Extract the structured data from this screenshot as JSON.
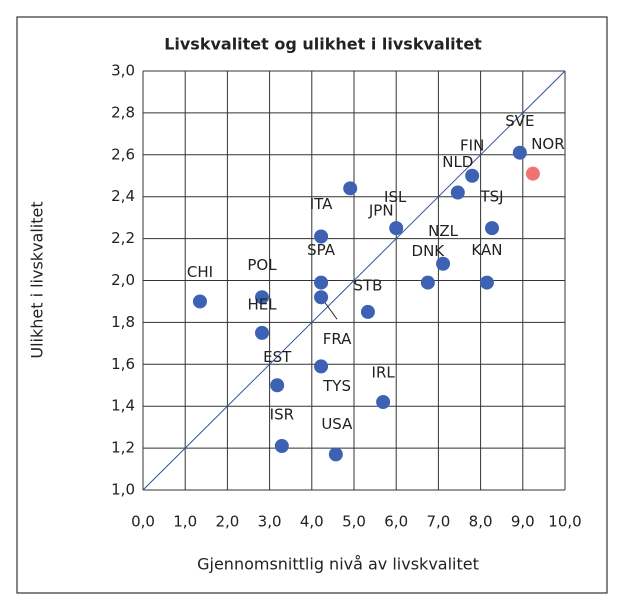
{
  "chart_data": {
    "type": "scatter",
    "title": "Livskvalitet og ulikhet i livskvalitet",
    "x_label": "Gjennomsnittlig nivå av livskvalitet",
    "y_label": "Ulikhet i livskvalitet",
    "labels": [
      "CHI",
      "POL",
      "HEL",
      "EST",
      "ISR",
      "ITA",
      "SPA",
      "FRA",
      "TYS",
      "ISL",
      "USA",
      "STB",
      "JPN",
      "IRL",
      "DNK",
      "NZL",
      "NLD",
      "FIN",
      "TSJ",
      "KAN",
      "SVE",
      "NOR"
    ],
    "x": [
      1.35,
      2.82,
      2.82,
      3.18,
      3.29,
      4.22,
      4.22,
      4.22,
      4.22,
      4.91,
      4.57,
      5.33,
      6.0,
      5.69,
      6.75,
      7.11,
      7.46,
      7.8,
      8.27,
      8.15,
      8.93,
      9.24
    ],
    "y": [
      1.9,
      1.92,
      1.75,
      1.5,
      1.21,
      2.21,
      1.99,
      1.92,
      1.59,
      2.44,
      1.17,
      1.85,
      2.25,
      1.42,
      1.99,
      2.08,
      2.42,
      2.5,
      2.25,
      1.99,
      2.61,
      2.51
    ],
    "colors": [
      "#3d62b3",
      "#3d62b3",
      "#3d62b3",
      "#3d62b3",
      "#3d62b3",
      "#3d62b3",
      "#3d62b3",
      "#3d62b3",
      "#3d62b3",
      "#3d62b3",
      "#3d62b3",
      "#3d62b3",
      "#3d62b3",
      "#3d62b3",
      "#3d62b3",
      "#3d62b3",
      "#3d62b3",
      "#3d62b3",
      "#3d62b3",
      "#3d62b3",
      "#3d62b3",
      "#f07373"
    ],
    "xlim": [
      0,
      10
    ],
    "ylim": [
      1,
      3
    ],
    "xticks": [
      {
        "value": 0,
        "label": "0,0"
      },
      {
        "value": 1,
        "label": "1,0"
      },
      {
        "value": 2,
        "label": "2,0"
      },
      {
        "value": 3,
        "label": "3,0"
      },
      {
        "value": 4,
        "label": "4,0"
      },
      {
        "value": 5,
        "label": "5,0"
      },
      {
        "value": 6,
        "label": "6,0"
      },
      {
        "value": 7,
        "label": "7,0"
      },
      {
        "value": 8,
        "label": "8,0"
      },
      {
        "value": 9,
        "label": "9,0"
      },
      {
        "value": 10,
        "label": "10,0"
      }
    ],
    "yticks": [
      {
        "value": 1,
        "label": "1,0"
      },
      {
        "value": 1.2,
        "label": "1,2"
      },
      {
        "value": 1.4,
        "label": "1,4"
      },
      {
        "value": 1.6,
        "label": "1,6"
      },
      {
        "value": 1.8,
        "label": "1,8"
      },
      {
        "value": 2,
        "label": "2,0"
      },
      {
        "value": 2.2,
        "label": "2,2"
      },
      {
        "value": 2.4,
        "label": "2,4"
      },
      {
        "value": 2.6,
        "label": "2,6"
      },
      {
        "value": 2.8,
        "label": "2,8"
      },
      {
        "value": 3,
        "label": "3,0"
      }
    ],
    "grid": true
  }
}
